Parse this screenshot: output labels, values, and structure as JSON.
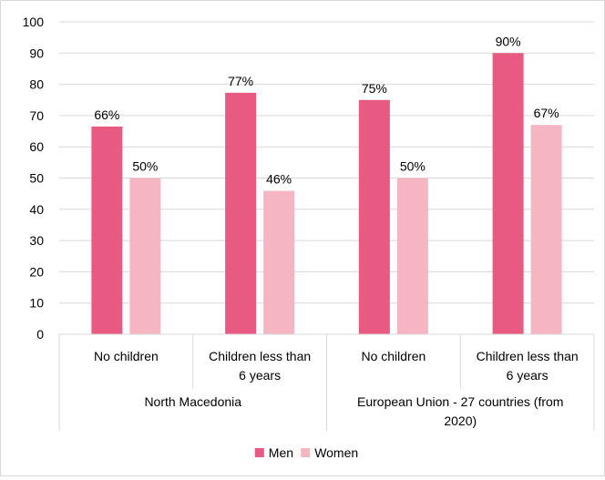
{
  "chart_data": {
    "type": "bar",
    "title": "",
    "xlabel": "",
    "ylabel": "",
    "ylim": [
      0,
      100
    ],
    "yticks": [
      0,
      10,
      20,
      30,
      40,
      50,
      60,
      70,
      80,
      90,
      100
    ],
    "grid": true,
    "legend_position": "bottom",
    "categories": [
      {
        "label": [
          "No children"
        ],
        "group": 0
      },
      {
        "label": [
          "Children less than",
          "6 years"
        ],
        "group": 0
      },
      {
        "label": [
          "No children"
        ],
        "group": 1
      },
      {
        "label": [
          "Children less than",
          "6 years"
        ],
        "group": 1
      }
    ],
    "groups": [
      {
        "label": [
          "North Macedonia"
        ]
      },
      {
        "label": [
          "European Union - 27 countries (from",
          "2020)"
        ]
      }
    ],
    "series": [
      {
        "name": "Men",
        "color": "#e95a82",
        "values": [
          66.5,
          77.3,
          75.0,
          90.0
        ],
        "labels": [
          "66%",
          "77%",
          "75%",
          "90%"
        ]
      },
      {
        "name": "Women",
        "color": "#f6b5c3",
        "values": [
          50.0,
          45.9,
          50.0,
          67.0
        ],
        "labels": [
          "50%",
          "46%",
          "50%",
          "67%"
        ]
      }
    ]
  }
}
